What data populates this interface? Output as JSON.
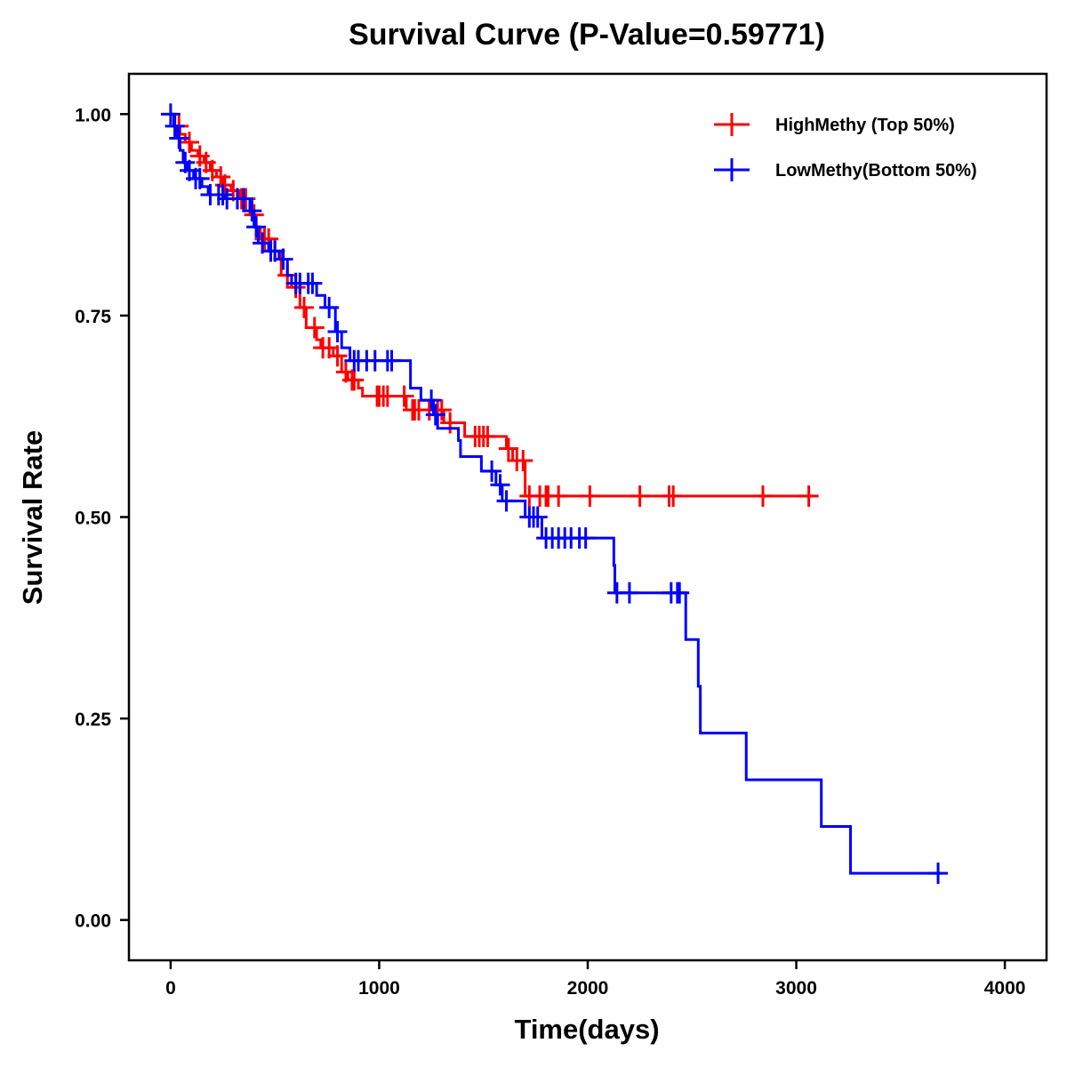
{
  "chart_data": {
    "type": "line",
    "subtype": "kaplan-meier-step",
    "title": "Survival Curve (P-Value=0.59771)",
    "xlabel": "Time(days)",
    "ylabel": "Survival Rate",
    "xlim": [
      -200,
      4200
    ],
    "ylim": [
      -0.05,
      1.05
    ],
    "xticks": [
      0,
      1000,
      2000,
      3000,
      4000
    ],
    "xtick_labels": [
      "0",
      "1000",
      "2000",
      "3000",
      "4000"
    ],
    "yticks": [
      0,
      0.25,
      0.5,
      0.75,
      1.0
    ],
    "ytick_labels": [
      "0.00",
      "0.25",
      "0.50",
      "0.75",
      "1.00"
    ],
    "grid": false,
    "legend_position": "top-right",
    "series": [
      {
        "name": "HighMethy (Top 50%)",
        "color": "#FF0000",
        "steps": [
          [
            0,
            1.0
          ],
          [
            20,
            0.985
          ],
          [
            45,
            0.975
          ],
          [
            70,
            0.965
          ],
          [
            100,
            0.955
          ],
          [
            130,
            0.948
          ],
          [
            160,
            0.94
          ],
          [
            190,
            0.93
          ],
          [
            220,
            0.922
          ],
          [
            250,
            0.912
          ],
          [
            290,
            0.905
          ],
          [
            330,
            0.895
          ],
          [
            380,
            0.875
          ],
          [
            410,
            0.86
          ],
          [
            430,
            0.845
          ],
          [
            480,
            0.83
          ],
          [
            530,
            0.8
          ],
          [
            580,
            0.785
          ],
          [
            620,
            0.76
          ],
          [
            650,
            0.735
          ],
          [
            700,
            0.72
          ],
          [
            720,
            0.71
          ],
          [
            780,
            0.7
          ],
          [
            820,
            0.68
          ],
          [
            850,
            0.67
          ],
          [
            900,
            0.66
          ],
          [
            920,
            0.65
          ],
          [
            1130,
            0.633
          ],
          [
            1310,
            0.617
          ],
          [
            1410,
            0.6
          ],
          [
            1610,
            0.585
          ],
          [
            1640,
            0.57
          ],
          [
            1700,
            0.526
          ],
          [
            3100,
            0.526
          ]
        ],
        "censor_times": [
          40,
          90,
          140,
          170,
          200,
          240,
          260,
          300,
          340,
          360,
          400,
          450,
          470,
          500,
          560,
          600,
          640,
          690,
          730,
          760,
          800,
          840,
          870,
          880,
          990,
          1000,
          1020,
          1040,
          1120,
          1160,
          1170,
          1190,
          1240,
          1280,
          1300,
          1340,
          1460,
          1480,
          1500,
          1520,
          1620,
          1660,
          1690,
          1720,
          1770,
          1800,
          1810,
          1860,
          2010,
          2250,
          2390,
          2410,
          2840,
          3060
        ]
      },
      {
        "name": "LowMethy(Bottom 50%)",
        "color": "#0000FF",
        "steps": [
          [
            0,
            1.0
          ],
          [
            15,
            0.985
          ],
          [
            30,
            0.97
          ],
          [
            45,
            0.955
          ],
          [
            60,
            0.94
          ],
          [
            80,
            0.93
          ],
          [
            110,
            0.92
          ],
          [
            150,
            0.91
          ],
          [
            180,
            0.9
          ],
          [
            260,
            0.895
          ],
          [
            380,
            0.88
          ],
          [
            400,
            0.86
          ],
          [
            420,
            0.84
          ],
          [
            470,
            0.83
          ],
          [
            520,
            0.82
          ],
          [
            560,
            0.8
          ],
          [
            580,
            0.79
          ],
          [
            700,
            0.775
          ],
          [
            740,
            0.76
          ],
          [
            790,
            0.73
          ],
          [
            820,
            0.71
          ],
          [
            860,
            0.694
          ],
          [
            1150,
            0.66
          ],
          [
            1200,
            0.645
          ],
          [
            1260,
            0.627
          ],
          [
            1280,
            0.61
          ],
          [
            1380,
            0.595
          ],
          [
            1390,
            0.575
          ],
          [
            1490,
            0.557
          ],
          [
            1560,
            0.54
          ],
          [
            1590,
            0.52
          ],
          [
            1700,
            0.5
          ],
          [
            1780,
            0.474
          ],
          [
            2125,
            0.44
          ],
          [
            2130,
            0.406
          ],
          [
            2470,
            0.348
          ],
          [
            2530,
            0.29
          ],
          [
            2540,
            0.232
          ],
          [
            2760,
            0.174
          ],
          [
            3120,
            0.116
          ],
          [
            3260,
            0.058
          ],
          [
            3700,
            0.058
          ]
        ],
        "censor_times": [
          0,
          20,
          40,
          70,
          90,
          120,
          140,
          190,
          230,
          250,
          270,
          320,
          350,
          390,
          410,
          440,
          480,
          500,
          540,
          600,
          620,
          660,
          680,
          760,
          800,
          880,
          900,
          940,
          980,
          1040,
          1060,
          1250,
          1270,
          1540,
          1580,
          1610,
          1720,
          1740,
          1760,
          1800,
          1830,
          1860,
          1890,
          1920,
          1960,
          1990,
          2140,
          2200,
          2400,
          2430,
          2440,
          3680
        ]
      }
    ]
  }
}
